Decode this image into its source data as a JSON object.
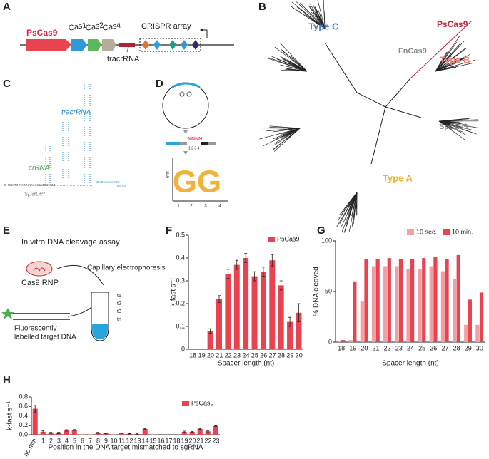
{
  "panels": {
    "letters": [
      "A",
      "B",
      "C",
      "D",
      "E",
      "F",
      "G",
      "H"
    ],
    "A": {
      "labels": [
        "PsCas9",
        "Cas1",
        "Cas2",
        "Cas4",
        "CRISPR array",
        "tracrRNA"
      ]
    },
    "B": {
      "labels": [
        "Type C",
        "PsCas9",
        "FnCas9",
        "Type B",
        "SpCas9",
        "Type A"
      ]
    },
    "C": {
      "labels": [
        "tracrRNA",
        "crRNA",
        "spacer",
        "5'-NNNNNNNNNNNNNNNNNNNNN",
        "CACUAAAAAU",
        "UUU-3'"
      ]
    },
    "D": {
      "labels": [
        "NNNN",
        "1 2 3 4",
        "Bits",
        "GG",
        "1",
        "2",
        "3",
        "4"
      ]
    },
    "E": {
      "labels": [
        "In vitro DNA cleavage assay",
        "Cas9 RNP",
        "Capillary electrophoresis",
        "Fluorescently",
        "labelled target DNA",
        "t1",
        "t2",
        "t3",
        "tn"
      ]
    }
  },
  "chart_data": [
    {
      "type": "bar",
      "x_label": "Spacer length (nt)",
      "y_label": "k-fast s⁻¹",
      "categories": [
        "18",
        "19",
        "20",
        "21",
        "22",
        "23",
        "24",
        "25",
        "26",
        "27",
        "28",
        "29",
        "30"
      ],
      "series": [
        {
          "name": "PsCas9",
          "color": "#e8434f",
          "values": [
            0,
            0,
            0.08,
            0.22,
            0.33,
            0.37,
            0.4,
            0.32,
            0.34,
            0.39,
            0.28,
            0.12,
            0.16
          ],
          "errors": [
            0,
            0,
            0.01,
            0.015,
            0.02,
            0.02,
            0.02,
            0.02,
            0.02,
            0.025,
            0.02,
            0.02,
            0.04
          ]
        }
      ],
      "ylim": [
        0,
        0.5
      ],
      "yticks": [
        0,
        0.1,
        0.2,
        0.3,
        0.4,
        0.5
      ]
    },
    {
      "type": "bar",
      "x_label": "Spacer length (nt)",
      "y_label": "% DNA cleaved",
      "categories": [
        "18",
        "19",
        "20",
        "21",
        "22",
        "23",
        "24",
        "25",
        "26",
        "27",
        "28",
        "29",
        "30"
      ],
      "series": [
        {
          "name": "10 sec.",
          "color": "#f0a0a4",
          "values": [
            1,
            2,
            40,
            75,
            75,
            75,
            72,
            72,
            75,
            70,
            62,
            17,
            17
          ]
        },
        {
          "name": "10 min.",
          "color": "#e8434f",
          "values": [
            2,
            60,
            82,
            82,
            83,
            82,
            82,
            83,
            84,
            82,
            86,
            42,
            49
          ]
        }
      ],
      "ylim": [
        0,
        100
      ],
      "yticks": [
        0,
        50,
        100
      ]
    },
    {
      "type": "bar",
      "x_label": "Position in the DNA target mismatched to sgRNA",
      "y_label": "k-fast s⁻¹",
      "categories": [
        "no mm",
        "1",
        "2",
        "3",
        "4",
        "5",
        "6",
        "7",
        "8",
        "9",
        "10",
        "11",
        "12",
        "13",
        "14",
        "15",
        "16",
        "17",
        "18",
        "19",
        "20",
        "21",
        "22",
        "23"
      ],
      "series": [
        {
          "name": "PsCas9",
          "color": "#e8434f",
          "values": [
            0.55,
            0.06,
            0.04,
            0.04,
            0.09,
            0.1,
            0.005,
            0.005,
            0.04,
            0.03,
            0.005,
            0.035,
            0.02,
            0.015,
            0.12,
            0.005,
            0,
            0,
            0,
            0.06,
            0.06,
            0.12,
            0.07,
            0.19
          ],
          "errors": [
            0.07,
            0.02,
            0.01,
            0.015,
            0.015,
            0.01,
            0,
            0,
            0.01,
            0.01,
            0,
            0.005,
            0.005,
            0.005,
            0.01,
            0,
            0,
            0,
            0,
            0.015,
            0.01,
            0.01,
            0.01,
            0.015
          ]
        }
      ],
      "ylim": [
        0,
        0.8
      ],
      "yticks": [
        {
          "value": 0,
          "label": "0.0"
        },
        0.2,
        0.4,
        0.6,
        0.8
      ]
    }
  ]
}
